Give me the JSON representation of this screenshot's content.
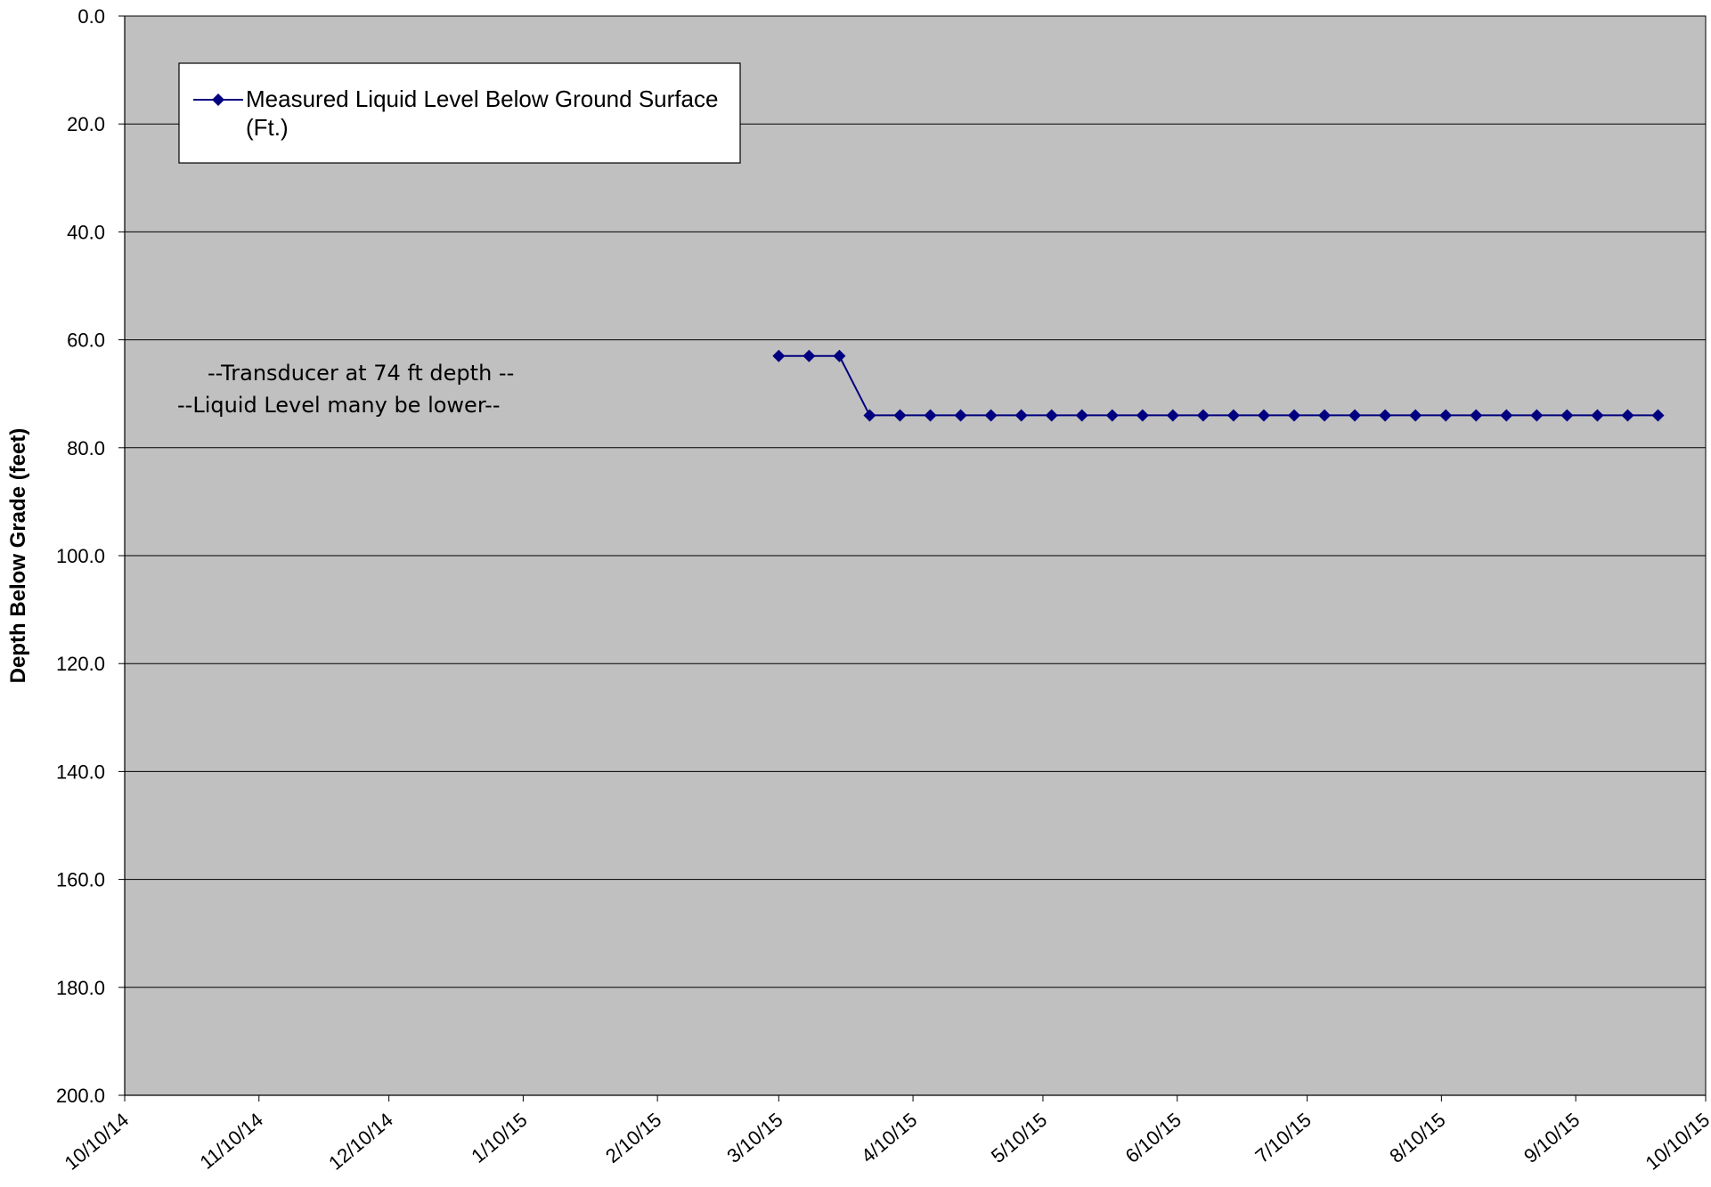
{
  "chart_data": {
    "type": "line",
    "title": "",
    "xlabel": "",
    "ylabel": "Depth Below Grade (feet)",
    "y_inverted": true,
    "ylim": [
      0,
      200
    ],
    "y_ticks": [
      "0.0",
      "20.0",
      "40.0",
      "60.0",
      "80.0",
      "100.0",
      "120.0",
      "140.0",
      "160.0",
      "180.0",
      "200.0"
    ],
    "xlim": [
      "2014-10-10",
      "2015-10-10"
    ],
    "x_ticks": [
      "10/10/14",
      "11/10/14",
      "12/10/14",
      "1/10/15",
      "2/10/15",
      "3/10/15",
      "4/10/15",
      "5/10/15",
      "6/10/15",
      "7/10/15",
      "8/10/15",
      "9/10/15",
      "10/10/15"
    ],
    "grid": "horizontal",
    "background": "#c0c0c0",
    "legend_position": "top-left",
    "annotations": [
      "--Transducer at 74 ft depth --",
      "--Liquid Level many be lower--"
    ],
    "series": [
      {
        "name": "Measured Liquid Level Below Ground Surface (Ft.)",
        "color": "#000080",
        "marker": "diamond",
        "x": [
          "2015-03-10",
          "2015-03-17",
          "2015-03-24",
          "2015-03-31",
          "2015-04-07",
          "2015-04-14",
          "2015-04-21",
          "2015-04-28",
          "2015-05-05",
          "2015-05-12",
          "2015-05-19",
          "2015-05-26",
          "2015-06-02",
          "2015-06-09",
          "2015-06-16",
          "2015-06-23",
          "2015-06-30",
          "2015-07-07",
          "2015-07-14",
          "2015-07-21",
          "2015-07-28",
          "2015-08-04",
          "2015-08-11",
          "2015-08-18",
          "2015-08-25",
          "2015-09-01",
          "2015-09-08",
          "2015-09-15",
          "2015-09-22",
          "2015-09-29"
        ],
        "values": [
          63,
          63,
          63,
          74,
          74,
          74,
          74,
          74,
          74,
          74,
          74,
          74,
          74,
          74,
          74,
          74,
          74,
          74,
          74,
          74,
          74,
          74,
          74,
          74,
          74,
          74,
          74,
          74,
          74,
          74
        ]
      }
    ]
  }
}
